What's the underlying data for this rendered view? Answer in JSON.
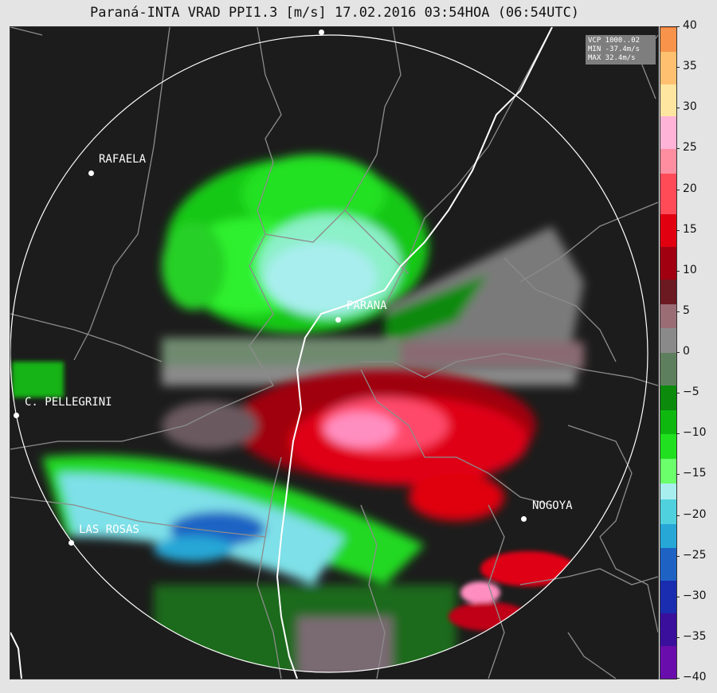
{
  "title": "Paraná-INTA VRAD PPI1.3 [m/s] 17.02.2016 03:54HOA (06:54UTC)",
  "info": {
    "line1": "VCP 1000..02",
    "line2": "MIN -37.4m/s",
    "line3": "MAX 32.4m/s"
  },
  "cities": {
    "rafaela": "RAFAELA",
    "parana": "PARANA",
    "pellegrini": "C. PELLEGRINI",
    "nogoya": "NOGOYA",
    "lasrosas": "LAS ROSAS"
  },
  "colorbar": {
    "min": -40,
    "max": 40,
    "ticks": [
      "40",
      "35",
      "30",
      "25",
      "20",
      "15",
      "10",
      "5",
      "0",
      "−5",
      "−10",
      "−15",
      "−20",
      "−25",
      "−30",
      "−35",
      "−40"
    ],
    "stops": [
      [
        "#6a0dad",
        -40
      ],
      [
        "#3a0f9c",
        -36
      ],
      [
        "#1a2db0",
        -32
      ],
      [
        "#1e63c4",
        -28
      ],
      [
        "#26a7d6",
        -24
      ],
      [
        "#4fd2de",
        -21
      ],
      [
        "#a8eeee",
        -18
      ],
      [
        "#6bff6b",
        -16
      ],
      [
        "#20e020",
        -13
      ],
      [
        "#0fb80f",
        -10
      ],
      [
        "#0b8a0b",
        -7
      ],
      [
        "#5e7f5e",
        -4
      ],
      [
        "#8a8a8a",
        0
      ],
      [
        "#9a6c74",
        3
      ],
      [
        "#6b1a22",
        6
      ],
      [
        "#a00010",
        9
      ],
      [
        "#e00010",
        13
      ],
      [
        "#ff4a58",
        17
      ],
      [
        "#ff8ea0",
        22
      ],
      [
        "#ffb3d6",
        25
      ],
      [
        "#ffe6a0",
        29
      ],
      [
        "#ffc070",
        33
      ],
      [
        "#f7934a",
        37
      ],
      [
        "#e06b30",
        40
      ]
    ]
  },
  "colors": {
    "background": "#1c1c1c",
    "range_ring": "#ffffff",
    "borders": "#8c8c8c",
    "river": "#ffffff"
  }
}
